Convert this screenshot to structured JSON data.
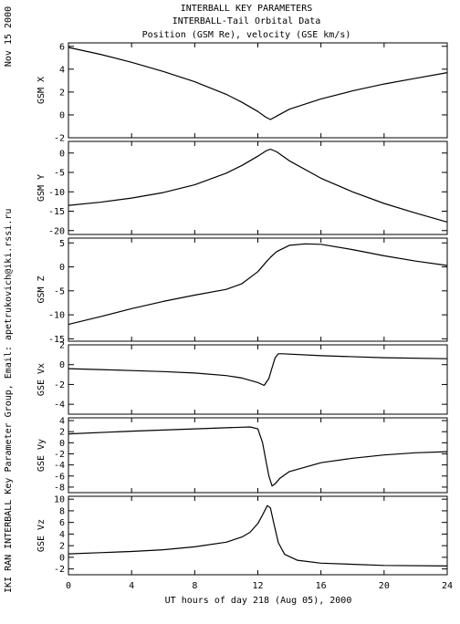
{
  "header": {
    "title_line1": "INTERBALL KEY PARAMETERS",
    "title_line2": "INTERBALL-Tail Orbital Data",
    "title_line3": "Position (GSM Re), velocity (GSE km/s)",
    "date_label": "Nov 15 2000",
    "credit": "IKI RAN INTERBALL Key Parameter Group, Email: apetrukovich@iki.rssi.ru"
  },
  "chart_data": [
    {
      "type": "line",
      "ylabel": "GSM X",
      "ylim": [
        -2,
        6.3
      ],
      "yticks": [
        -2,
        0,
        2,
        4,
        6
      ],
      "x": [
        0,
        2,
        4,
        6,
        8,
        10,
        11,
        12,
        12.5,
        12.8,
        13.2,
        14,
        16,
        18,
        20,
        22,
        24
      ],
      "values": [
        5.9,
        5.3,
        4.6,
        3.8,
        2.9,
        1.8,
        1.1,
        0.3,
        -0.2,
        -0.4,
        -0.1,
        0.5,
        1.4,
        2.1,
        2.7,
        3.2,
        3.7
      ]
    },
    {
      "type": "line",
      "ylabel": "GSM Y",
      "ylim": [
        -21,
        3
      ],
      "yticks": [
        -20,
        -15,
        -10,
        -5,
        0
      ],
      "x": [
        0,
        2,
        4,
        6,
        8,
        10,
        11,
        12,
        12.5,
        12.8,
        13.2,
        14,
        16,
        18,
        20,
        22,
        24
      ],
      "values": [
        -13.5,
        -12.7,
        -11.6,
        -10.2,
        -8.2,
        -5.2,
        -3.2,
        -0.8,
        0.5,
        1.0,
        0.3,
        -2.0,
        -6.5,
        -10.0,
        -13.0,
        -15.5,
        -17.8
      ]
    },
    {
      "type": "line",
      "ylabel": "GSM Z",
      "ylim": [
        -15.5,
        6
      ],
      "yticks": [
        -15,
        -10,
        -5,
        0,
        5
      ],
      "x": [
        0,
        2,
        4,
        6,
        8,
        10,
        11,
        12,
        12.5,
        12.8,
        13.2,
        14,
        15,
        16,
        18,
        20,
        22,
        24
      ],
      "values": [
        -12.0,
        -10.4,
        -8.7,
        -7.2,
        -5.9,
        -4.7,
        -3.5,
        -1.0,
        0.9,
        2.0,
        3.2,
        4.5,
        4.8,
        4.7,
        3.6,
        2.3,
        1.2,
        0.3
      ]
    },
    {
      "type": "line",
      "ylabel": "GSE Vx",
      "ylim": [
        -5,
        2
      ],
      "yticks": [
        -4,
        -2,
        0,
        2
      ],
      "x": [
        0,
        2,
        4,
        6,
        8,
        10,
        11,
        12,
        12.4,
        12.7,
        12.9,
        13.1,
        13.3,
        13.6,
        16,
        20,
        24
      ],
      "values": [
        -0.4,
        -0.5,
        -0.6,
        -0.7,
        -0.85,
        -1.1,
        -1.35,
        -1.8,
        -2.1,
        -1.4,
        -0.3,
        0.7,
        1.1,
        1.1,
        0.9,
        0.7,
        0.6
      ]
    },
    {
      "type": "line",
      "ylabel": "GSE Vy",
      "ylim": [
        -9,
        4.5
      ],
      "yticks": [
        -8,
        -6,
        -4,
        -2,
        0,
        2,
        4
      ],
      "x": [
        0,
        4,
        8,
        10,
        11,
        11.5,
        12,
        12.3,
        12.5,
        12.7,
        12.9,
        13.1,
        13.4,
        14,
        16,
        18,
        20,
        22,
        24
      ],
      "values": [
        1.6,
        2.1,
        2.5,
        2.7,
        2.8,
        2.85,
        2.5,
        0.0,
        -3.0,
        -6.0,
        -7.8,
        -7.4,
        -6.4,
        -5.2,
        -3.6,
        -2.8,
        -2.2,
        -1.8,
        -1.6
      ]
    },
    {
      "type": "line",
      "ylabel": "GSE Vz",
      "ylim": [
        -3,
        10.5
      ],
      "yticks": [
        -2,
        0,
        2,
        4,
        6,
        8,
        10
      ],
      "x": [
        0,
        2,
        4,
        6,
        8,
        10,
        11,
        11.5,
        12,
        12.3,
        12.6,
        12.8,
        13.0,
        13.3,
        13.7,
        14.5,
        16,
        20,
        24
      ],
      "values": [
        0.6,
        0.8,
        1.0,
        1.3,
        1.8,
        2.6,
        3.5,
        4.3,
        5.8,
        7.3,
        8.9,
        8.5,
        6.0,
        2.5,
        0.5,
        -0.5,
        -1.0,
        -1.4,
        -1.5
      ]
    }
  ],
  "xaxis": {
    "xlim": [
      0,
      24
    ],
    "ticks": [
      0,
      4,
      8,
      12,
      16,
      20,
      24
    ],
    "label": "UT hours of day 218 (Aug 05), 2000"
  }
}
